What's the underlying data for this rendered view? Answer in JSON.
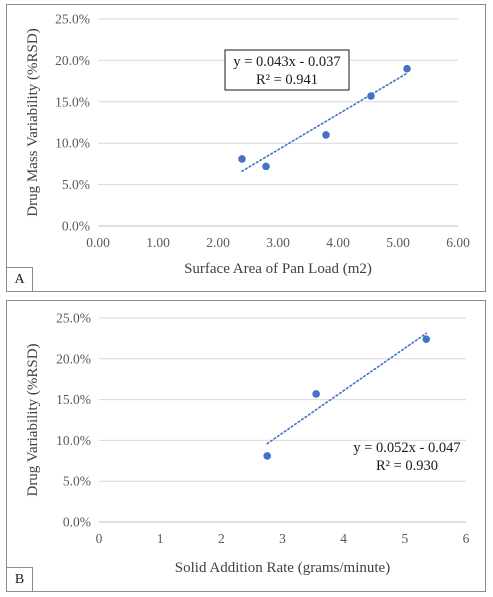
{
  "chart_data": [
    {
      "type": "scatter",
      "panel_label": "A",
      "xlabel": "Surface Area of Pan Load (m2)",
      "ylabel": "Drug Mass Variability (%RSD)",
      "xlim": [
        0,
        6
      ],
      "ylim": [
        0,
        0.25
      ],
      "x_ticks": [
        "0.00",
        "1.00",
        "2.00",
        "3.00",
        "4.00",
        "5.00",
        "6.00"
      ],
      "y_ticks": [
        "0.0%",
        "5.0%",
        "10.0%",
        "15.0%",
        "20.0%",
        "25.0%"
      ],
      "grid": true,
      "marker_color": "#4472c4",
      "points": [
        {
          "x": 2.4,
          "y": 0.081
        },
        {
          "x": 2.8,
          "y": 0.072
        },
        {
          "x": 3.8,
          "y": 0.11
        },
        {
          "x": 4.55,
          "y": 0.157
        },
        {
          "x": 5.15,
          "y": 0.19
        }
      ],
      "trendline": {
        "slope": 0.043,
        "intercept": -0.037,
        "x_range": [
          2.4,
          5.15
        ],
        "style": "dotted",
        "equation": "y = 0.043x - 0.037",
        "r_squared": "R² = 0.941",
        "label_boxed": true
      }
    },
    {
      "type": "scatter",
      "panel_label": "B",
      "xlabel": "Solid Addition Rate (grams/minute)",
      "ylabel": "Drug Variability (%RSD)",
      "xlim": [
        0,
        6
      ],
      "ylim": [
        0,
        0.25
      ],
      "x_ticks": [
        "0",
        "1",
        "2",
        "3",
        "4",
        "5",
        "6"
      ],
      "y_ticks": [
        "0.0%",
        "5.0%",
        "10.0%",
        "15.0%",
        "20.0%",
        "25.0%"
      ],
      "grid": true,
      "marker_color": "#4472c4",
      "points": [
        {
          "x": 2.75,
          "y": 0.081
        },
        {
          "x": 3.55,
          "y": 0.157
        },
        {
          "x": 5.35,
          "y": 0.224
        }
      ],
      "trendline": {
        "slope": 0.052,
        "intercept": -0.047,
        "x_range": [
          2.75,
          5.35
        ],
        "style": "dotted",
        "equation": "y = 0.052x - 0.047",
        "r_squared": "R² = 0.930",
        "label_boxed": false
      }
    }
  ]
}
